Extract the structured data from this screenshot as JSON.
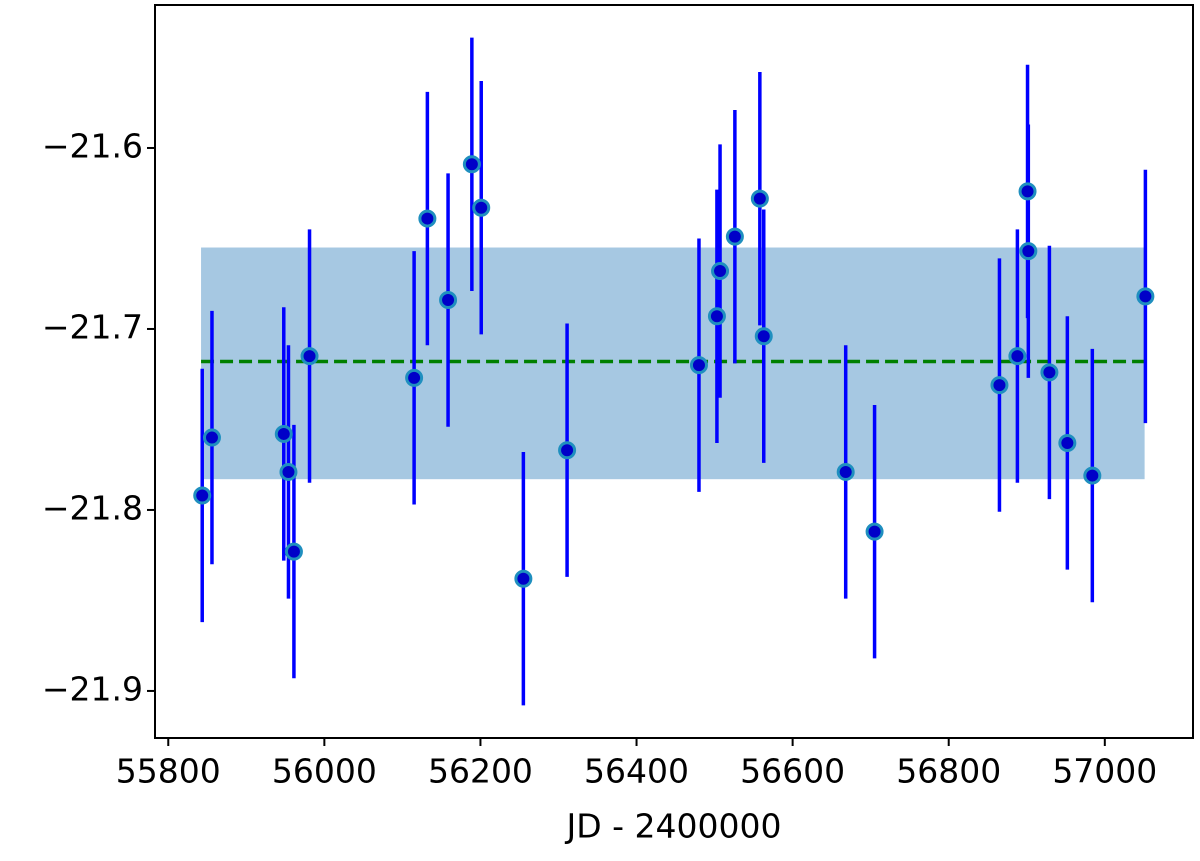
{
  "chart_data": {
    "type": "errorbar",
    "xlabel": "JD - 2400000",
    "x": [
      55843.5,
      55856,
      55948,
      55954,
      55961,
      55981,
      56115,
      56132,
      56158.5,
      56189,
      56201,
      56255,
      56311,
      56480,
      56503,
      56507,
      56526,
      56558,
      56563,
      56668,
      56705,
      56865,
      56888,
      56901,
      56902,
      56929,
      56952,
      56984,
      57052
    ],
    "values": [
      -21.792,
      -21.76,
      -21.758,
      -21.779,
      -21.823,
      -21.715,
      -21.727,
      -21.639,
      -21.684,
      -21.609,
      -21.633,
      -21.838,
      -21.767,
      -21.72,
      -21.693,
      -21.668,
      -21.649,
      -21.628,
      -21.704,
      -21.779,
      -21.812,
      -21.731,
      -21.715,
      -21.624,
      -21.657,
      -21.724,
      -21.763,
      -21.781,
      -21.682
    ],
    "errors": [
      0.07,
      0.07,
      0.07,
      0.07,
      0.07,
      0.07,
      0.07,
      0.07,
      0.07,
      0.07,
      0.07,
      0.07,
      0.07,
      0.07,
      0.07,
      0.07,
      0.07,
      0.07,
      0.07,
      0.07,
      0.07,
      0.07,
      0.07,
      0.07,
      0.07,
      0.07,
      0.07,
      0.07,
      0.07
    ],
    "color": "#0000ff",
    "marker_color": "#0000c8",
    "marker_edge_color": "#1f8fbf",
    "mean": -21.718,
    "mean_color": "#008000",
    "band_x": [
      55842,
      57051
    ],
    "band_y": [
      -21.783,
      -21.655
    ],
    "band_color": "#a6c8e2",
    "xlim": [
      55783,
      57113
    ],
    "ylim": [
      -21.926,
      -21.521
    ],
    "xticks": [
      55800,
      56000,
      56200,
      56400,
      56600,
      56800,
      57000
    ],
    "yticks": [
      {
        "value": -21.9,
        "label": "−21.9"
      },
      {
        "value": -21.8,
        "label": "−21.8"
      },
      {
        "value": -21.7,
        "label": "−21.7"
      },
      {
        "value": -21.6,
        "label": "−21.6"
      }
    ]
  }
}
